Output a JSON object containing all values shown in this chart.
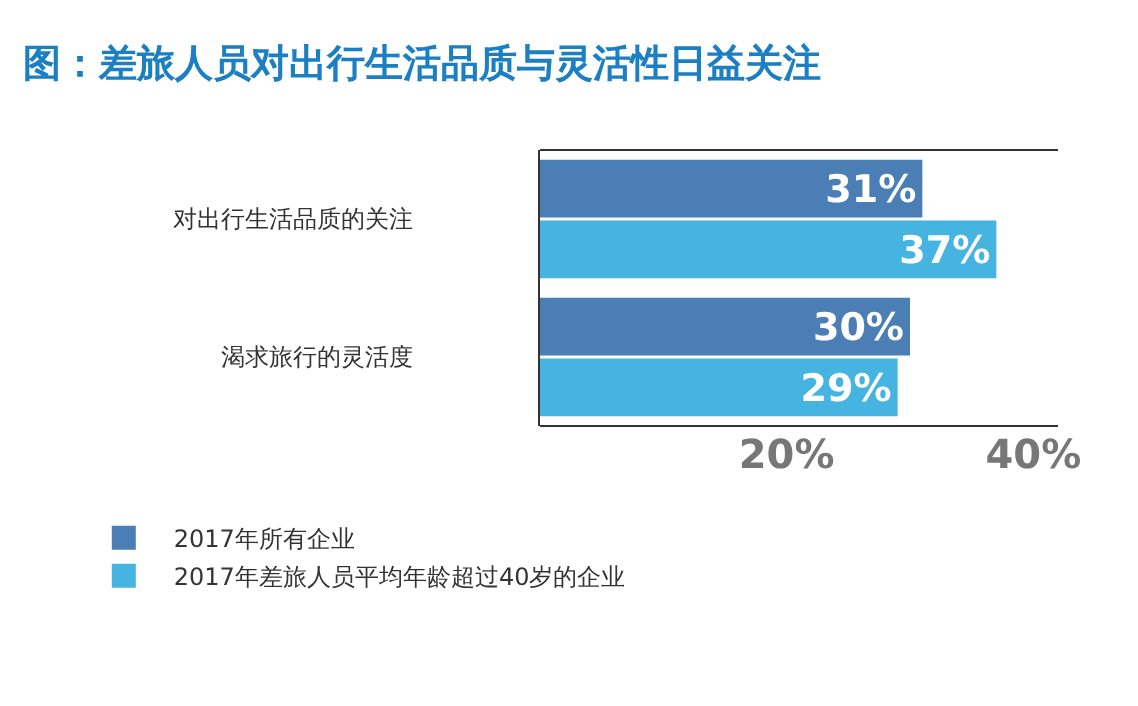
{
  "chart_data": {
    "type": "bar",
    "orientation": "horizontal",
    "title": "图：差旅人员对出行生活品质与灵活性日益关注",
    "categories": [
      "对出行生活品质的关注",
      "渴求旅行的灵活度"
    ],
    "series": [
      {
        "name": "2017年所有企业",
        "color": "#4a7eb4",
        "values": [
          31,
          30
        ],
        "value_labels": [
          "31%",
          "30%"
        ]
      },
      {
        "name": "2017年差旅人员平均年龄超过40岁的企业",
        "color": "#46b4e0",
        "values": [
          37,
          29
        ],
        "value_labels": [
          "37%",
          "29%"
        ]
      }
    ],
    "xlim": [
      0,
      42
    ],
    "xticks": [
      {
        "value": 20,
        "label": "20%"
      },
      {
        "value": 40,
        "label": "40%"
      }
    ],
    "grid": false,
    "legend": "bottom"
  }
}
